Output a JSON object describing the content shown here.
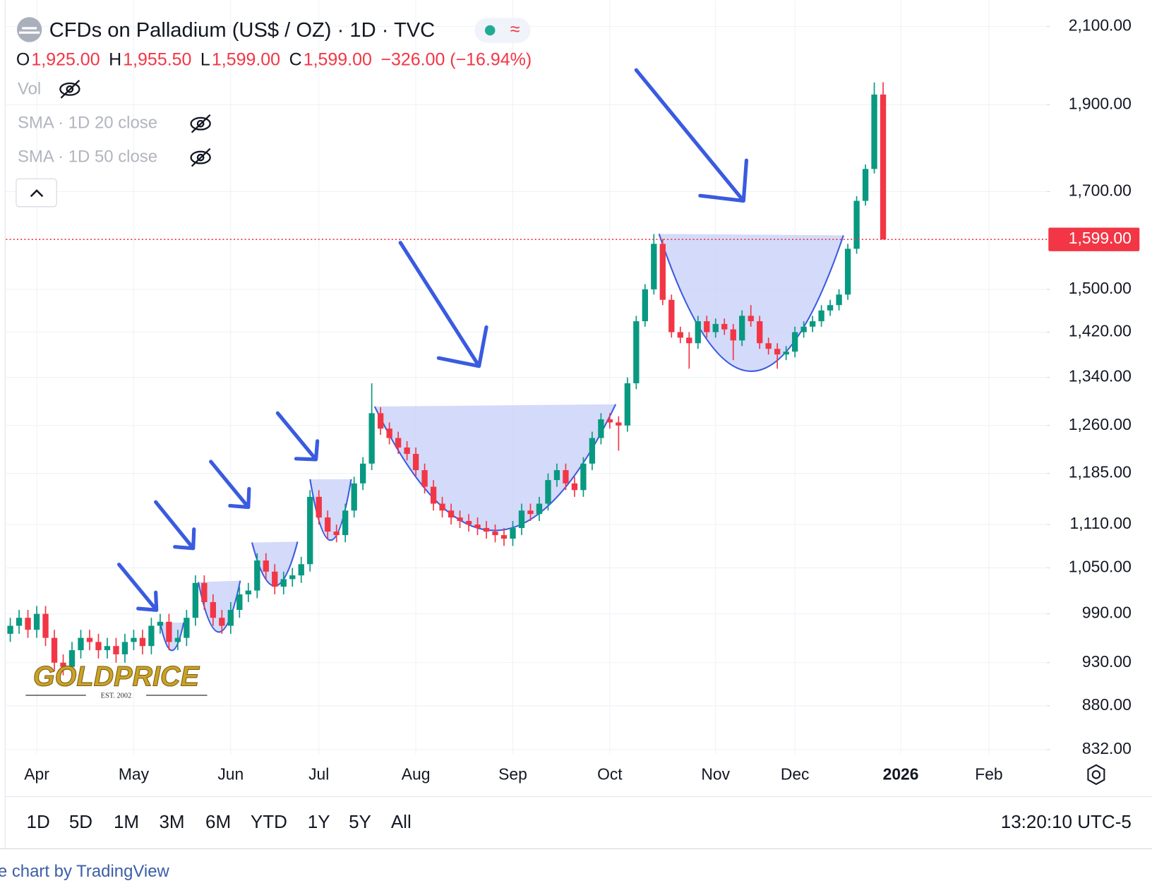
{
  "header": {
    "title": "CFDs on Palladium (US$ / OZ) · 1D · TVC",
    "ohlc": [
      {
        "label": "O",
        "value": "1,925.00"
      },
      {
        "label": "H",
        "value": "1,955.50"
      },
      {
        "label": "L",
        "value": "1,599.00"
      },
      {
        "label": "C",
        "value": "1,599.00"
      }
    ],
    "change": "−326.00 (−16.94%)",
    "indicators": [
      "Vol",
      "SMA · 1D 20 close",
      "SMA · 1D 50 close"
    ]
  },
  "chart_data": {
    "type": "candlestick",
    "categories": [
      null,
      null,
      null,
      "Apr",
      null,
      null,
      null,
      null,
      null,
      null,
      null,
      null,
      null,
      null,
      "May",
      null,
      null,
      null,
      null,
      null,
      null,
      null,
      null,
      null,
      null,
      "Jun",
      null,
      null,
      null,
      null,
      null,
      null,
      null,
      null,
      null,
      "Jul",
      null,
      null,
      null,
      null,
      null,
      null,
      null,
      null,
      null,
      null,
      "Aug",
      null,
      null,
      null,
      null,
      null,
      null,
      null,
      null,
      null,
      null,
      "Sep",
      null,
      null,
      null,
      null,
      null,
      null,
      null,
      null,
      null,
      null,
      "Oct",
      null,
      null,
      null,
      null,
      null,
      null,
      null,
      null,
      null,
      null,
      null,
      "Nov",
      null,
      null,
      null,
      null,
      null,
      null,
      null,
      null,
      "Dec",
      null,
      null,
      null,
      null,
      null,
      null,
      null,
      null,
      null,
      null,
      null,
      "2026",
      null,
      null,
      null,
      null,
      null,
      null,
      null,
      null,
      null,
      "Feb",
      null,
      null,
      null,
      null,
      null,
      null
    ],
    "ohlc": [
      [
        965,
        985,
        955,
        975
      ],
      [
        975,
        995,
        965,
        985
      ],
      [
        985,
        995,
        960,
        970
      ],
      [
        970,
        1000,
        960,
        990
      ],
      [
        990,
        1000,
        950,
        960
      ],
      [
        960,
        970,
        920,
        930
      ],
      [
        930,
        940,
        915,
        925
      ],
      [
        925,
        955,
        915,
        945
      ],
      [
        945,
        970,
        935,
        960
      ],
      [
        960,
        970,
        945,
        955
      ],
      [
        955,
        965,
        935,
        945
      ],
      [
        945,
        960,
        935,
        950
      ],
      [
        950,
        960,
        930,
        940
      ],
      [
        940,
        965,
        930,
        955
      ],
      [
        955,
        970,
        945,
        960
      ],
      [
        960,
        970,
        940,
        950
      ],
      [
        950,
        985,
        940,
        975
      ],
      [
        975,
        990,
        965,
        980
      ],
      [
        980,
        990,
        945,
        955
      ],
      [
        955,
        970,
        945,
        960
      ],
      [
        960,
        995,
        950,
        985
      ],
      [
        985,
        1040,
        975,
        1030
      ],
      [
        1030,
        1040,
        995,
        1005
      ],
      [
        1005,
        1015,
        975,
        985
      ],
      [
        985,
        995,
        965,
        975
      ],
      [
        975,
        1005,
        965,
        995
      ],
      [
        995,
        1025,
        985,
        1015
      ],
      [
        1015,
        1030,
        1005,
        1020
      ],
      [
        1020,
        1070,
        1010,
        1060
      ],
      [
        1060,
        1070,
        1035,
        1045
      ],
      [
        1045,
        1055,
        1015,
        1025
      ],
      [
        1025,
        1045,
        1015,
        1035
      ],
      [
        1035,
        1050,
        1025,
        1040
      ],
      [
        1040,
        1065,
        1030,
        1055
      ],
      [
        1055,
        1160,
        1045,
        1150
      ],
      [
        1150,
        1160,
        1110,
        1120
      ],
      [
        1120,
        1130,
        1090,
        1100
      ],
      [
        1100,
        1110,
        1085,
        1095
      ],
      [
        1095,
        1140,
        1085,
        1130
      ],
      [
        1130,
        1180,
        1120,
        1170
      ],
      [
        1170,
        1210,
        1160,
        1200
      ],
      [
        1200,
        1330,
        1190,
        1280
      ],
      [
        1280,
        1290,
        1245,
        1255
      ],
      [
        1255,
        1265,
        1230,
        1240
      ],
      [
        1240,
        1250,
        1215,
        1225
      ],
      [
        1225,
        1235,
        1205,
        1215
      ],
      [
        1215,
        1225,
        1180,
        1190
      ],
      [
        1190,
        1200,
        1155,
        1165
      ],
      [
        1165,
        1175,
        1130,
        1140
      ],
      [
        1140,
        1150,
        1120,
        1130
      ],
      [
        1130,
        1140,
        1110,
        1120
      ],
      [
        1120,
        1130,
        1105,
        1115
      ],
      [
        1115,
        1125,
        1100,
        1110
      ],
      [
        1110,
        1120,
        1095,
        1105
      ],
      [
        1105,
        1115,
        1090,
        1100
      ],
      [
        1100,
        1110,
        1085,
        1095
      ],
      [
        1095,
        1105,
        1080,
        1090
      ],
      [
        1090,
        1115,
        1080,
        1105
      ],
      [
        1105,
        1140,
        1095,
        1130
      ],
      [
        1130,
        1140,
        1115,
        1125
      ],
      [
        1125,
        1150,
        1115,
        1140
      ],
      [
        1140,
        1185,
        1130,
        1175
      ],
      [
        1175,
        1200,
        1165,
        1190
      ],
      [
        1190,
        1200,
        1160,
        1170
      ],
      [
        1170,
        1180,
        1150,
        1160
      ],
      [
        1160,
        1210,
        1150,
        1200
      ],
      [
        1200,
        1250,
        1190,
        1240
      ],
      [
        1240,
        1280,
        1230,
        1270
      ],
      [
        1270,
        1280,
        1255,
        1265
      ],
      [
        1265,
        1275,
        1220,
        1260
      ],
      [
        1260,
        1340,
        1250,
        1330
      ],
      [
        1330,
        1450,
        1320,
        1440
      ],
      [
        1440,
        1510,
        1430,
        1500
      ],
      [
        1500,
        1610,
        1490,
        1590
      ],
      [
        1590,
        1600,
        1470,
        1480
      ],
      [
        1480,
        1490,
        1410,
        1420
      ],
      [
        1420,
        1430,
        1400,
        1410
      ],
      [
        1410,
        1420,
        1355,
        1400
      ],
      [
        1400,
        1450,
        1390,
        1440
      ],
      [
        1440,
        1450,
        1410,
        1420
      ],
      [
        1420,
        1445,
        1410,
        1435
      ],
      [
        1435,
        1445,
        1415,
        1425
      ],
      [
        1425,
        1435,
        1370,
        1405
      ],
      [
        1405,
        1460,
        1395,
        1450
      ],
      [
        1450,
        1470,
        1430,
        1440
      ],
      [
        1440,
        1450,
        1390,
        1400
      ],
      [
        1400,
        1410,
        1380,
        1390
      ],
      [
        1390,
        1400,
        1355,
        1380
      ],
      [
        1380,
        1395,
        1370,
        1385
      ],
      [
        1385,
        1430,
        1375,
        1420
      ],
      [
        1420,
        1440,
        1410,
        1430
      ],
      [
        1430,
        1450,
        1420,
        1440
      ],
      [
        1440,
        1470,
        1430,
        1460
      ],
      [
        1460,
        1480,
        1450,
        1470
      ],
      [
        1470,
        1500,
        1460,
        1490
      ],
      [
        1490,
        1590,
        1480,
        1580
      ],
      [
        1580,
        1690,
        1570,
        1680
      ],
      [
        1680,
        1760,
        1670,
        1750
      ],
      [
        1750,
        1955,
        1740,
        1925
      ],
      [
        1925,
        1955.5,
        1599,
        1599
      ],
      null,
      null,
      null,
      null,
      null,
      null,
      null,
      null,
      null,
      null,
      null,
      null,
      null,
      null,
      null,
      null,
      null,
      null
    ],
    "up_color": "#089981",
    "down_color": "#f23645",
    "ylim": [
      832,
      2172
    ],
    "log": true,
    "grid": true,
    "yticks": [
      {
        "value": 2100,
        "label": "2,100.00"
      },
      {
        "value": 1900,
        "label": "1,900.00"
      },
      {
        "value": 1700,
        "label": "1,700.00"
      },
      {
        "value": 1500,
        "label": "1,500.00"
      },
      {
        "value": 1420,
        "label": "1,420.00"
      },
      {
        "value": 1340,
        "label": "1,340.00"
      },
      {
        "value": 1260,
        "label": "1,260.00"
      },
      {
        "value": 1185,
        "label": "1,185.00"
      },
      {
        "value": 1110,
        "label": "1,110.00"
      },
      {
        "value": 1050,
        "label": "1,050.00"
      },
      {
        "value": 990,
        "label": "990.00"
      },
      {
        "value": 930,
        "label": "930.00"
      },
      {
        "value": 880,
        "label": "880.00"
      },
      {
        "value": 832,
        "label": "832.00"
      }
    ],
    "last_price": {
      "value": 1599,
      "label": "1,599.00"
    }
  },
  "logo": {
    "name": "GOLDPRICE",
    "tagline": "EST. 2002"
  },
  "toolbar": {
    "ranges": [
      "1D",
      "5D",
      "1M",
      "3M",
      "6M",
      "YTD",
      "1Y",
      "5Y",
      "All"
    ],
    "time": "13:20:10 UTC-5"
  },
  "footer": "e chart by TradingView"
}
